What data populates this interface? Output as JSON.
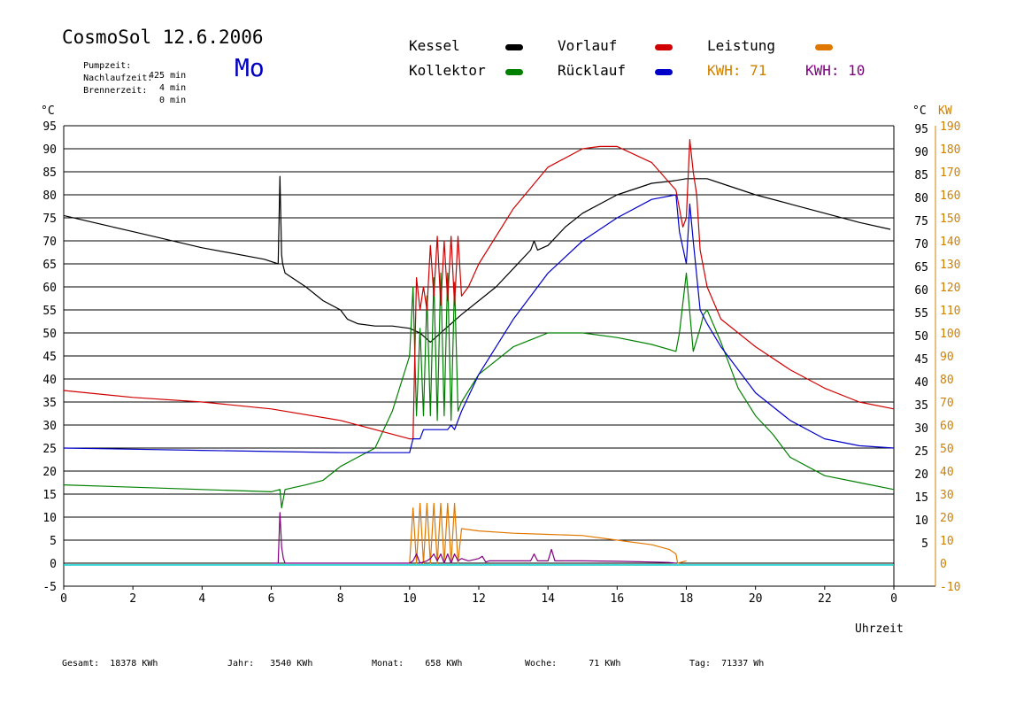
{
  "header": {
    "title": "CosmoSol 12.6.2006",
    "day": "Mo",
    "meta": [
      {
        "label": "Pumpzeit:",
        "value": "425 min"
      },
      {
        "label": "Nachlaufzeit:",
        "value": "4 min"
      },
      {
        "label": "Brennerzeit:",
        "value": "0 min"
      }
    ]
  },
  "legend": {
    "kessel": "Kessel",
    "kollektor": "Kollektor",
    "vorlauf": "Vorlauf",
    "ruecklauf": "Rücklauf",
    "leistung": "Leistung",
    "kwh1_label": "KWH:",
    "kwh1_value": "71",
    "kwh2_label": "KWH:",
    "kwh2_value": "10"
  },
  "colors": {
    "kessel": "#000000",
    "kollektor": "#008000",
    "vorlauf": "#d00000",
    "ruecklauf": "#0000c8",
    "leistung": "#e07800",
    "leistung2": "#800080",
    "baseline": "#00c8c8",
    "right_axis": "#d08000"
  },
  "footer": {
    "gesamt_label": "Gesamt:",
    "gesamt_value": "18378 KWh",
    "jahr_label": "Jahr:",
    "jahr_value": "3540 KWh",
    "monat_label": "Monat:",
    "monat_value": "658 KWh",
    "woche_label": "Woche:",
    "woche_value": "71 KWh",
    "tag_label": "Tag:",
    "tag_value": "71337 Wh"
  },
  "chart_data": {
    "type": "line",
    "xlabel": "Uhrzeit",
    "ylabel_left": "°C",
    "ylabel_right_temp": "°C",
    "ylabel_right_power": "KW",
    "xlim": [
      0,
      24
    ],
    "ylim": [
      -5,
      95
    ],
    "x_ticks": [
      "0",
      "2",
      "4",
      "6",
      "8",
      "10",
      "12",
      "14",
      "16",
      "18",
      "20",
      "22",
      "0"
    ],
    "y_ticks_left": [
      "-5",
      "0",
      "5",
      "10",
      "15",
      "20",
      "25",
      "30",
      "35",
      "40",
      "45",
      "50",
      "55",
      "60",
      "65",
      "70",
      "75",
      "80",
      "85",
      "90",
      "95"
    ],
    "y_ticks_right_temp": [
      "5",
      "10",
      "15",
      "20",
      "25",
      "30",
      "35",
      "40",
      "45",
      "50",
      "55",
      "60",
      "65",
      "70",
      "75",
      "80",
      "85",
      "90",
      "95"
    ],
    "y_ticks_right_power": [
      "-10",
      "0",
      "10",
      "20",
      "30",
      "40",
      "50",
      "60",
      "70",
      "80",
      "90",
      "100",
      "110",
      "120",
      "130",
      "140",
      "150",
      "160",
      "170",
      "180",
      "190"
    ],
    "grid": true,
    "series": [
      {
        "name": "Kessel",
        "color_key": "kessel",
        "x": [
          0,
          2,
          4,
          5.8,
          6.2,
          6.25,
          6.3,
          6.33,
          6.4,
          7,
          7.5,
          8,
          8.2,
          8.5,
          9,
          9.5,
          10,
          10.3,
          10.6,
          10.9,
          11.2,
          11.5,
          12,
          12.5,
          13,
          13.5,
          13.6,
          13.7,
          14,
          14.5,
          15,
          16,
          17,
          17.6,
          18,
          18.2,
          18.6,
          19,
          20,
          21,
          22,
          23,
          23.9
        ],
        "y": [
          75.5,
          72,
          68.5,
          66,
          65,
          84,
          67,
          65,
          63,
          60,
          57,
          55,
          53,
          52,
          51.5,
          51.5,
          51,
          50,
          48,
          50,
          52,
          54,
          57,
          60,
          64,
          68,
          70,
          68,
          69,
          73,
          76,
          80,
          82.5,
          83,
          83.5,
          83.5,
          83.5,
          82.5,
          80,
          78,
          76,
          74,
          72.5
        ]
      },
      {
        "name": "Kollektor",
        "color_key": "kollektor",
        "x": [
          0,
          2,
          4,
          6,
          6.25,
          6.3,
          6.4,
          7,
          7.5,
          8,
          8.5,
          9,
          9.5,
          10,
          10.1,
          10.2,
          10.3,
          10.4,
          10.5,
          10.6,
          10.7,
          10.8,
          10.9,
          11,
          11.1,
          11.2,
          11.3,
          11.4,
          11.5,
          12,
          13,
          14,
          15,
          16,
          17,
          17.7,
          17.8,
          18,
          18.2,
          18.4,
          18.5,
          18.6,
          19,
          19.5,
          20,
          20.5,
          21,
          22,
          23,
          24
        ],
        "y": [
          17,
          16.5,
          16,
          15.5,
          16,
          12,
          16,
          17,
          18,
          21,
          23,
          25,
          33,
          45,
          60,
          32,
          51,
          32,
          58,
          32,
          62,
          31,
          63,
          32,
          63,
          31,
          61,
          33,
          35,
          41,
          47,
          50,
          50,
          49,
          47.5,
          46,
          50,
          63,
          46,
          51,
          54,
          55,
          48,
          38,
          32,
          28,
          23,
          19,
          17.5,
          16
        ]
      },
      {
        "name": "Vorlauf",
        "color_key": "vorlauf",
        "x": [
          0,
          2,
          4,
          6,
          8,
          9,
          10,
          10.1,
          10.2,
          10.3,
          10.4,
          10.5,
          10.6,
          10.7,
          10.8,
          10.9,
          11,
          11.1,
          11.2,
          11.3,
          11.4,
          11.5,
          11.7,
          12,
          13,
          14,
          15,
          15.5,
          16,
          17,
          17.7,
          17.9,
          18,
          18.1,
          18.2,
          18.3,
          18.4,
          18.6,
          19,
          20,
          21,
          22,
          23,
          24
        ],
        "y": [
          37.5,
          36,
          35,
          33.5,
          31,
          29,
          27,
          27,
          62,
          55,
          60,
          55,
          69,
          58,
          71,
          56,
          70,
          57,
          71,
          56,
          71,
          58,
          60,
          65,
          77,
          86,
          90,
          90.5,
          90.5,
          87,
          81,
          73,
          75,
          92,
          85,
          80,
          68,
          60,
          53,
          47,
          42,
          38,
          35,
          33.5
        ]
      },
      {
        "name": "Rücklauf",
        "color_key": "ruecklauf",
        "x": [
          0,
          4,
          8,
          10,
          10.1,
          10.2,
          10.3,
          10.4,
          10.5,
          10.6,
          10.7,
          10.8,
          10.9,
          11,
          11.1,
          11.2,
          11.3,
          11.5,
          12,
          13,
          14,
          15,
          16,
          17,
          17.7,
          17.8,
          18,
          18.1,
          18.2,
          18.4,
          18.6,
          19,
          20,
          21,
          22,
          23,
          24
        ],
        "y": [
          25,
          24.5,
          24,
          24,
          27,
          27,
          27,
          29,
          29,
          29,
          29,
          29,
          29,
          29,
          29,
          30,
          29,
          33,
          41,
          53,
          63,
          70,
          75,
          79,
          80,
          72,
          65,
          78,
          70,
          55,
          52,
          47,
          37,
          31,
          27,
          25.5,
          25
        ]
      },
      {
        "name": "Leistung",
        "color_key": "leistung",
        "x": [
          10,
          10.1,
          10.2,
          10.3,
          10.4,
          10.5,
          10.6,
          10.7,
          10.8,
          10.9,
          11,
          11.1,
          11.2,
          11.3,
          11.4,
          11.5,
          12,
          13,
          14,
          15,
          16,
          17,
          17.5,
          17.7,
          17.75,
          18
        ],
        "y": [
          0,
          24,
          0,
          26,
          0,
          26,
          0,
          26,
          0,
          26,
          0,
          26,
          0,
          26,
          0,
          15,
          14,
          13,
          12.5,
          12,
          10,
          8,
          6,
          4,
          0,
          1
        ]
      },
      {
        "name": "KWH",
        "color_key": "leistung2",
        "x": [
          6,
          6.2,
          6.25,
          6.3,
          6.35,
          6.4,
          10,
          10.1,
          10.2,
          10.3,
          10.5,
          10.6,
          10.7,
          10.8,
          10.9,
          11,
          11.1,
          11.2,
          11.3,
          11.4,
          11.5,
          11.7,
          12,
          12.1,
          12.2,
          12.3,
          13,
          13.5,
          13.6,
          13.7,
          13.8,
          14,
          14.1,
          14.2,
          14.5,
          15,
          16,
          17,
          17.5,
          17.7
        ],
        "y": [
          0,
          0,
          22,
          7,
          2,
          0,
          0,
          1,
          4,
          0,
          1,
          2,
          4,
          1,
          4,
          0,
          4,
          0,
          4,
          1,
          2,
          1,
          2,
          3,
          0.5,
          1,
          1,
          1,
          4,
          1,
          1,
          1,
          6,
          1,
          1,
          1,
          0.8,
          0.5,
          0.3,
          0
        ]
      }
    ]
  }
}
